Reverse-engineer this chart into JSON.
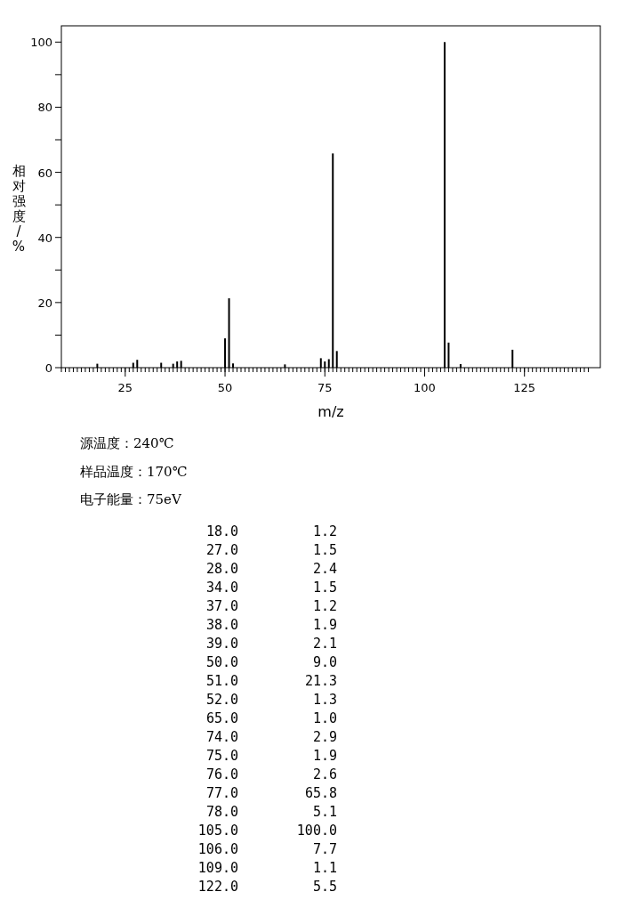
{
  "chart_data": {
    "type": "bar",
    "xlabel": "m/z",
    "ylabel": "相对强度/%",
    "color": "#000000",
    "x": [
      18,
      27,
      28,
      34,
      37,
      38,
      39,
      50,
      51,
      52,
      65,
      74,
      75,
      76,
      77,
      78,
      105,
      106,
      109,
      122
    ],
    "values": [
      1.2,
      1.5,
      2.4,
      1.5,
      1.2,
      1.9,
      2.1,
      9.0,
      21.3,
      1.3,
      1.0,
      2.9,
      1.9,
      2.6,
      65.8,
      5.1,
      100.0,
      7.7,
      1.1,
      5.5
    ],
    "xlim": [
      9,
      144
    ],
    "ylim": [
      0,
      105
    ],
    "xticks": [
      25,
      50,
      75,
      100,
      125
    ],
    "yticks": [
      0,
      {
        "value": 10,
        "label": null
      },
      20,
      {
        "value": 30,
        "label": null
      },
      40,
      {
        "value": 50,
        "label": null
      },
      60,
      {
        "value": 70,
        "label": null
      },
      80,
      {
        "value": 90,
        "label": null
      },
      100
    ],
    "annotations": [
      "源温度：240℃",
      "样品温度：170℃",
      "电子能量：75eV",
      "18.0",
      "1.2",
      "27.0",
      "1.5",
      "28.0",
      "2.4",
      "34.0",
      "1.5",
      "37.0",
      "1.2",
      "38.0",
      "1.9",
      "39.0",
      "2.1",
      "50.0",
      "9.0",
      "51.0",
      "21.3",
      "52.0",
      "1.3",
      "65.0",
      "1.0",
      "74.0",
      "2.9",
      "75.0",
      "1.9",
      "76.0",
      "2.6",
      "77.0",
      "65.8",
      "78.0",
      "5.1",
      "105.0",
      "100.0",
      "106.0",
      "7.7",
      "109.0",
      "1.1",
      "122.0",
      "5.5"
    ]
  }
}
